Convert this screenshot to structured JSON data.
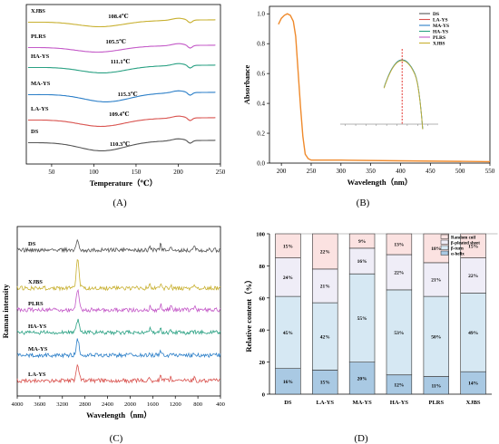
{
  "panel_labels": [
    "(A)",
    "(B)",
    "(C)",
    "(D)"
  ],
  "colors": {
    "DS": "#555555",
    "LA-YS": "#d9534f",
    "MA-YS": "#2c7fc8",
    "HA-YS": "#2aa183",
    "PLRS": "#c45ac8",
    "XJBS": "#c8b030",
    "B_orange": "#ef8a2c",
    "random_coil": "#fbe2e1",
    "beta_sheet": "#efedf7",
    "beta_turn": "#d6e8f3",
    "alpha_helix": "#a9c9e3",
    "redline": "#e0201a"
  },
  "chart_data": [
    {
      "type": "line",
      "panel": "A",
      "xlabel": "Temperature（℃）",
      "xlim": [
        20,
        250
      ],
      "xticks": [
        50,
        100,
        150,
        200,
        250
      ],
      "ylabel": "",
      "series": [
        {
          "name": "XJBS",
          "peak": 108.4,
          "peak_label": "108.4℃"
        },
        {
          "name": "PLRS",
          "peak": 105.5,
          "peak_label": "105.5℃"
        },
        {
          "name": "HA-YS",
          "peak": 111.1,
          "peak_label": "111.1℃"
        },
        {
          "name": "MA-YS",
          "peak": 115.3,
          "peak_label": "115.3℃"
        },
        {
          "name": "LA-YS",
          "peak": 109.4,
          "peak_label": "109.4℃"
        },
        {
          "name": "DS",
          "peak": 110.3,
          "peak_label": "110.3℃"
        }
      ]
    },
    {
      "type": "line",
      "panel": "B",
      "xlabel": "Wavelength（nm）",
      "ylabel": "Absorbance",
      "xlim": [
        180,
        550
      ],
      "ylim": [
        0,
        1.05
      ],
      "xticks": [
        200,
        250,
        300,
        350,
        400,
        450,
        500,
        550
      ],
      "yticks": [
        "0.0",
        "0.2",
        "0.4",
        "0.6",
        "0.8",
        "1.0"
      ],
      "legend": [
        "DS",
        "LA-YS",
        "MA-YS",
        "HA-YS",
        "PLRS",
        "XJBS"
      ],
      "legend_position": "top-right",
      "points": [
        [
          195,
          0.93
        ],
        [
          200,
          0.97
        ],
        [
          205,
          0.99
        ],
        [
          210,
          1.0
        ],
        [
          215,
          0.99
        ],
        [
          220,
          0.95
        ],
        [
          224,
          0.85
        ],
        [
          228,
          0.62
        ],
        [
          232,
          0.38
        ],
        [
          236,
          0.18
        ],
        [
          240,
          0.06
        ],
        [
          245,
          0.03
        ],
        [
          250,
          0.02
        ],
        [
          300,
          0.02
        ],
        [
          400,
          0.015
        ],
        [
          550,
          0.01
        ]
      ],
      "inset": {
        "peak_x": 420,
        "marker": "dashed vertical line at peak"
      }
    },
    {
      "type": "line",
      "panel": "C",
      "xlabel": "Wavelength（nm）",
      "ylabel": "Raman intensity",
      "xlim": [
        4000,
        400
      ],
      "xticks": [
        4000,
        3600,
        3200,
        2800,
        2400,
        2000,
        1600,
        1200,
        800,
        400
      ],
      "series": [
        {
          "name": "DS"
        },
        {
          "name": "XJBS"
        },
        {
          "name": "PLRS"
        },
        {
          "name": "HA-YS"
        },
        {
          "name": "MA-YS"
        },
        {
          "name": "LA-YS"
        }
      ],
      "main_peak_x": 2930
    },
    {
      "type": "bar",
      "panel": "D",
      "stacked": true,
      "categories": [
        "DS",
        "LA-YS",
        "MA-YS",
        "HA-YS",
        "PLRS",
        "XJBS"
      ],
      "ylabel": "Relative content（%）",
      "ylim": [
        0,
        100
      ],
      "yticks": [
        0,
        20,
        40,
        60,
        80,
        100
      ],
      "legend": [
        "Random coil",
        "β-pleated sheet",
        "β-turn",
        "α-helix"
      ],
      "legend_position": "top-right",
      "series": [
        {
          "name": "α-helix",
          "values": [
            16,
            15,
            20,
            12,
            11,
            14
          ],
          "labels": [
            "16%",
            "15%",
            "20%",
            "12%",
            "11%",
            "14%"
          ]
        },
        {
          "name": "β-turn",
          "values": [
            45,
            42,
            55,
            53,
            50,
            49
          ],
          "labels": [
            "45%",
            "42%",
            "55%",
            "53%",
            "50%",
            "49%"
          ]
        },
        {
          "name": "β-pleated sheet",
          "values": [
            24,
            21,
            16,
            22,
            21,
            22
          ],
          "labels": [
            "24%",
            "21%",
            "16%",
            "22%",
            "21%",
            "22%"
          ]
        },
        {
          "name": "Random coil",
          "values": [
            15,
            22,
            9,
            13,
            18,
            15
          ],
          "labels": [
            "15%",
            "22%",
            "9%",
            "13%",
            "18%",
            "15%"
          ]
        }
      ]
    }
  ]
}
